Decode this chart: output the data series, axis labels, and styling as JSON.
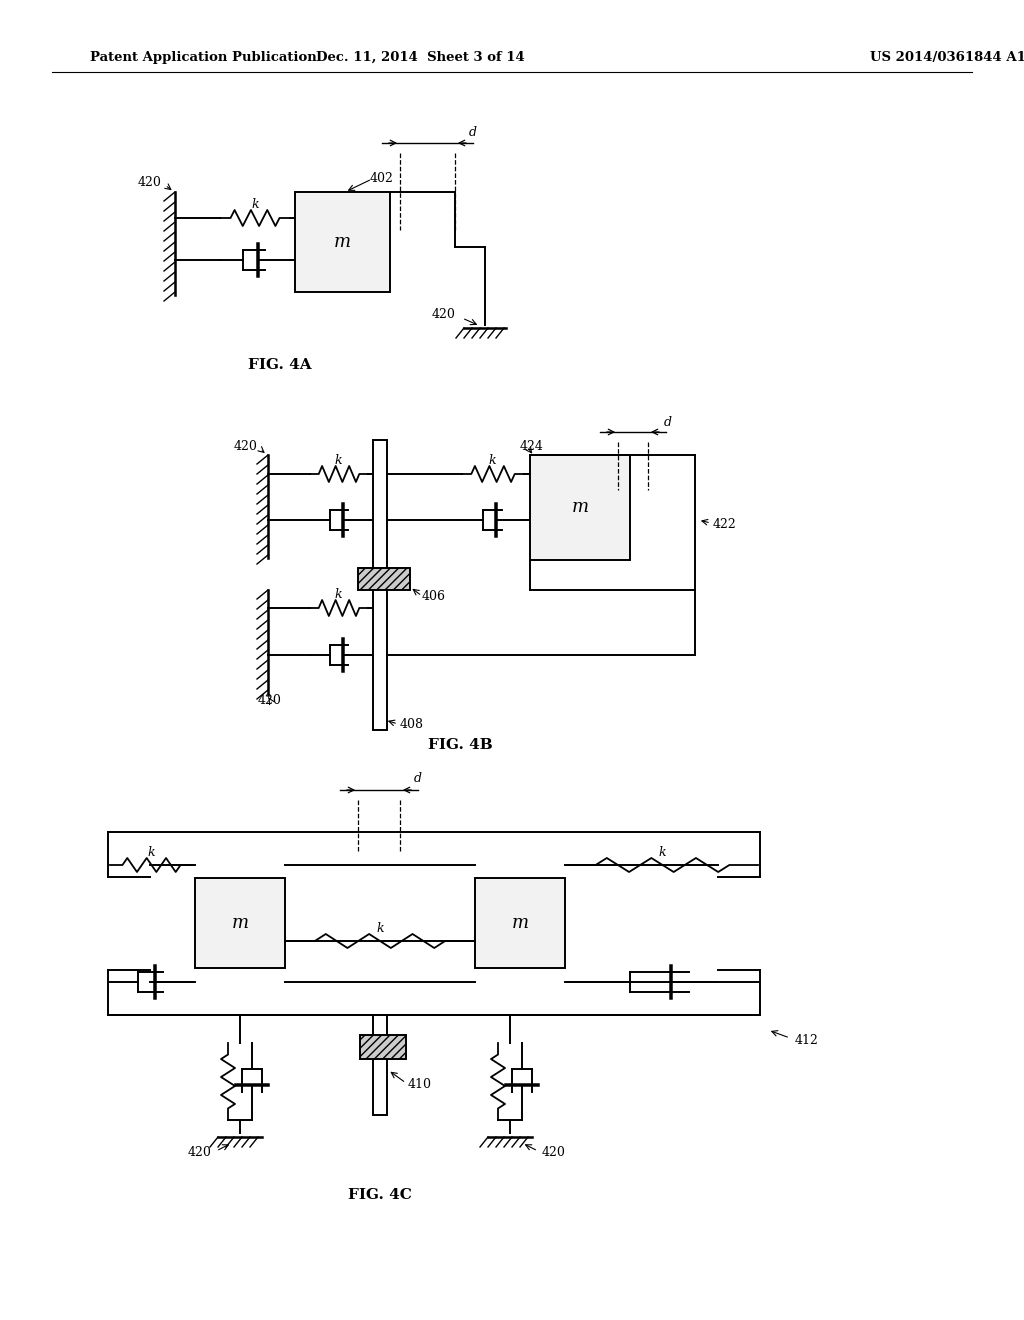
{
  "header_left": "Patent Application Publication",
  "header_mid": "Dec. 11, 2014  Sheet 3 of 14",
  "header_right": "US 2014/0361844 A1",
  "fig4a_label": "FIG. 4A",
  "fig4b_label": "FIG. 4B",
  "fig4c_label": "FIG. 4C",
  "bg_color": "#ffffff",
  "line_color": "#000000"
}
